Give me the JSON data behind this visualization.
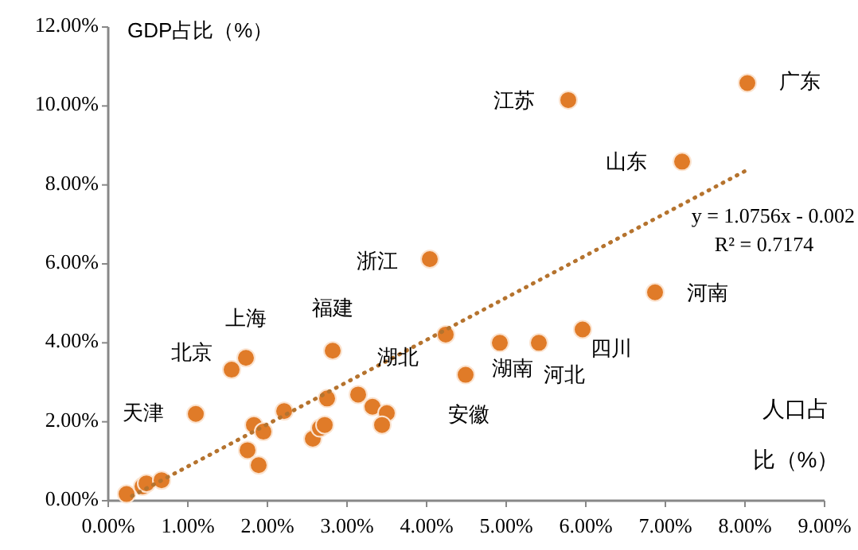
{
  "chart_data": {
    "type": "scatter",
    "ylabel": "GDP占比（%）",
    "xlabel": "人口占比（%）",
    "grid": false,
    "xlim": [
      0,
      9
    ],
    "ylim": [
      0,
      12
    ],
    "xticks": [
      {
        "value": 0,
        "label": "0.00%"
      },
      {
        "value": 1,
        "label": "1.00%"
      },
      {
        "value": 2,
        "label": "2.00%"
      },
      {
        "value": 3,
        "label": "3.00%"
      },
      {
        "value": 4,
        "label": "4.00%"
      },
      {
        "value": 5,
        "label": "5.00%"
      },
      {
        "value": 6,
        "label": "6.00%"
      },
      {
        "value": 7,
        "label": "7.00%"
      },
      {
        "value": 8,
        "label": "8.00%"
      },
      {
        "value": 9,
        "label": "9.00%"
      }
    ],
    "yticks": [
      {
        "value": 0,
        "label": "0.00%"
      },
      {
        "value": 2,
        "label": "2.00%"
      },
      {
        "value": 4,
        "label": "4.00%"
      },
      {
        "value": 6,
        "label": "6.00%"
      },
      {
        "value": 8,
        "label": "8.00%"
      },
      {
        "value": 10,
        "label": "10.00%"
      },
      {
        "value": 12,
        "label": "12.00%"
      }
    ],
    "series": [
      {
        "color": "#e07b28",
        "marker": "circle",
        "x": [
          0.23,
          0.43,
          0.48,
          0.67,
          1.1,
          1.55,
          1.73,
          1.75,
          1.83,
          1.89,
          1.95,
          2.21,
          2.57,
          2.66,
          2.72,
          2.75,
          2.82,
          3.14,
          3.32,
          3.5,
          3.44,
          4.04,
          4.24,
          4.49,
          4.92,
          5.41,
          5.96,
          6.87,
          7.21,
          5.78,
          8.03
        ],
        "values": [
          0.17,
          0.36,
          0.44,
          0.52,
          2.2,
          3.32,
          3.62,
          1.28,
          1.92,
          0.9,
          1.75,
          2.27,
          1.57,
          1.84,
          1.92,
          2.59,
          3.8,
          2.69,
          2.38,
          2.22,
          1.92,
          6.12,
          4.21,
          3.19,
          4.0,
          4.0,
          4.34,
          5.28,
          8.59,
          10.15,
          10.58
        ]
      },
      {
        "type": "line",
        "color": "#b5732e",
        "line_style": "dotted",
        "marker": "none",
        "x": [
          0.3,
          8.0
        ],
        "values": [
          0.12,
          8.35
        ]
      }
    ],
    "annotations": [
      {
        "text": "天津",
        "x": 1.1,
        "y": 2.2
      },
      {
        "text": "北京",
        "x": 1.55,
        "y": 3.32
      },
      {
        "text": "上海",
        "x": 1.73,
        "y": 3.62
      },
      {
        "text": "福建",
        "x": 2.82,
        "y": 3.8
      },
      {
        "text": "浙江",
        "x": 4.04,
        "y": 6.12
      },
      {
        "text": "湖北",
        "x": 4.24,
        "y": 4.21
      },
      {
        "text": "安徽",
        "x": 4.49,
        "y": 3.19
      },
      {
        "text": "湖南",
        "x": 4.92,
        "y": 4.0
      },
      {
        "text": "河北",
        "x": 5.41,
        "y": 4.0
      },
      {
        "text": "四川",
        "x": 5.96,
        "y": 4.34
      },
      {
        "text": "河南",
        "x": 6.87,
        "y": 5.28
      },
      {
        "text": "山东",
        "x": 7.21,
        "y": 8.59
      },
      {
        "text": "江苏",
        "x": 5.78,
        "y": 10.15
      },
      {
        "text": "广东",
        "x": 8.03,
        "y": 10.58
      },
      "y = 1.0756x - 0.002",
      "R² = 0.7174"
    ]
  }
}
